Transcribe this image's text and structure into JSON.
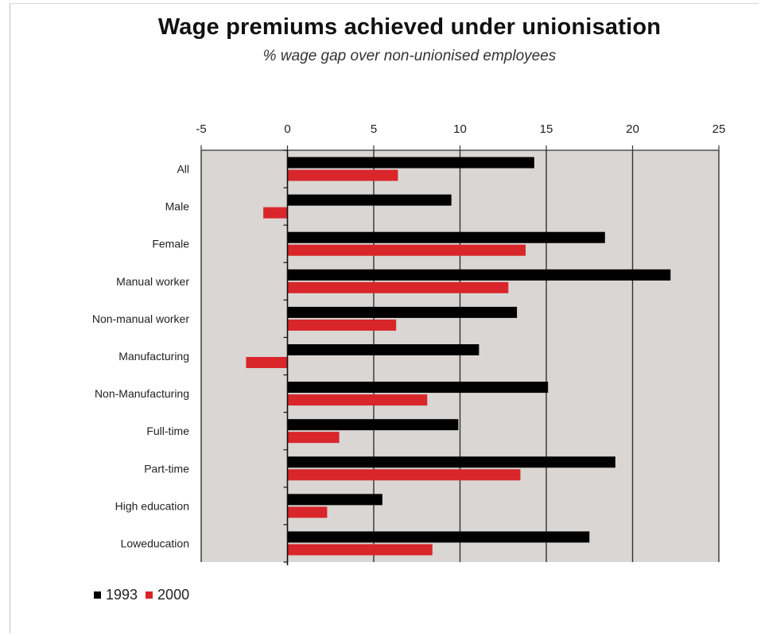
{
  "chart_data": {
    "type": "bar",
    "orientation": "horizontal",
    "title": "Wage premiums achieved under unionisation",
    "subtitle": "% wage gap over non-unionised employees",
    "categories": [
      "All",
      "Male",
      "Female",
      "Manual worker",
      "Non-manual worker",
      "Manufacturing",
      "Non-Manufacturing",
      "Full-time",
      "Part-time",
      "High education",
      "Loweducation"
    ],
    "series": [
      {
        "name": "1993",
        "color": "#000000",
        "values": [
          14.3,
          9.5,
          18.4,
          22.2,
          13.3,
          11.1,
          15.1,
          9.9,
          19.0,
          5.5,
          17.5
        ]
      },
      {
        "name": "2000",
        "color": "#d8262b",
        "values": [
          6.4,
          -1.4,
          13.8,
          12.8,
          6.3,
          -2.4,
          8.1,
          3.0,
          13.5,
          2.3,
          8.4
        ]
      }
    ],
    "xlim": [
      -5,
      25
    ],
    "xticks": [
      "-5",
      "0",
      "5",
      "10",
      "15",
      "20",
      "25"
    ],
    "xaxis_position": "top",
    "grid": true,
    "legend": "bottom-left"
  }
}
